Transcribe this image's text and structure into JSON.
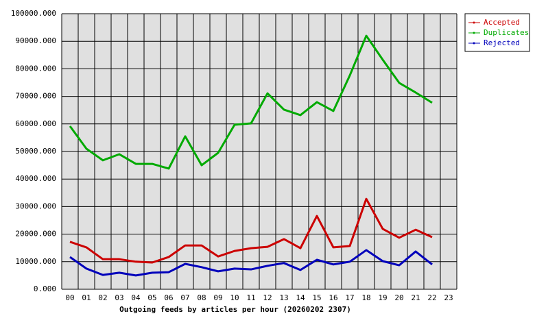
{
  "chart_data": {
    "type": "line",
    "x_label": "Outgoing feeds by articles per hour (20260202 2307)",
    "categories": [
      "00",
      "01",
      "02",
      "03",
      "04",
      "05",
      "06",
      "07",
      "08",
      "09",
      "10",
      "11",
      "12",
      "13",
      "14",
      "15",
      "16",
      "17",
      "18",
      "19",
      "20",
      "21",
      "22",
      "23"
    ],
    "series": [
      {
        "name": "Accepted",
        "color": "#cc0000",
        "values": [
          17200,
          15200,
          10900,
          10900,
          10000,
          9700,
          11700,
          15900,
          15900,
          11900,
          13900,
          14900,
          15400,
          18200,
          14900,
          26600,
          15200,
          15700,
          32800,
          21900,
          18700,
          21600,
          18900,
          null
        ]
      },
      {
        "name": "Duplicates",
        "color": "#00aa00",
        "values": [
          59200,
          51000,
          46800,
          49000,
          45500,
          45500,
          43800,
          55500,
          45000,
          49500,
          59700,
          60200,
          71100,
          65200,
          63200,
          67900,
          64700,
          77600,
          92000,
          83300,
          74900,
          71400,
          67700,
          null
        ]
      },
      {
        "name": "Rejected",
        "color": "#0000bb",
        "values": [
          11700,
          7500,
          5200,
          6000,
          5000,
          6000,
          6200,
          9200,
          8000,
          6500,
          7500,
          7200,
          8500,
          9500,
          7000,
          10700,
          9000,
          10000,
          14200,
          10200,
          8700,
          13700,
          9000,
          null
        ]
      }
    ],
    "ylim": [
      0,
      100000
    ],
    "yticks": [
      {
        "value": 0,
        "label": "0.000"
      },
      {
        "value": 10000,
        "label": "10000.000"
      },
      {
        "value": 20000,
        "label": "20000.000"
      },
      {
        "value": 30000,
        "label": "30000.000"
      },
      {
        "value": 40000,
        "label": "40000.000"
      },
      {
        "value": 50000,
        "label": "50000.000"
      },
      {
        "value": 60000,
        "label": "60000.000"
      },
      {
        "value": 70000,
        "label": "70000.000"
      },
      {
        "value": 80000,
        "label": "80000.000"
      },
      {
        "value": 90000,
        "label": "90000.000"
      },
      {
        "value": 100000,
        "label": "100000.000"
      }
    ],
    "grid": true,
    "legend": "top-right"
  }
}
